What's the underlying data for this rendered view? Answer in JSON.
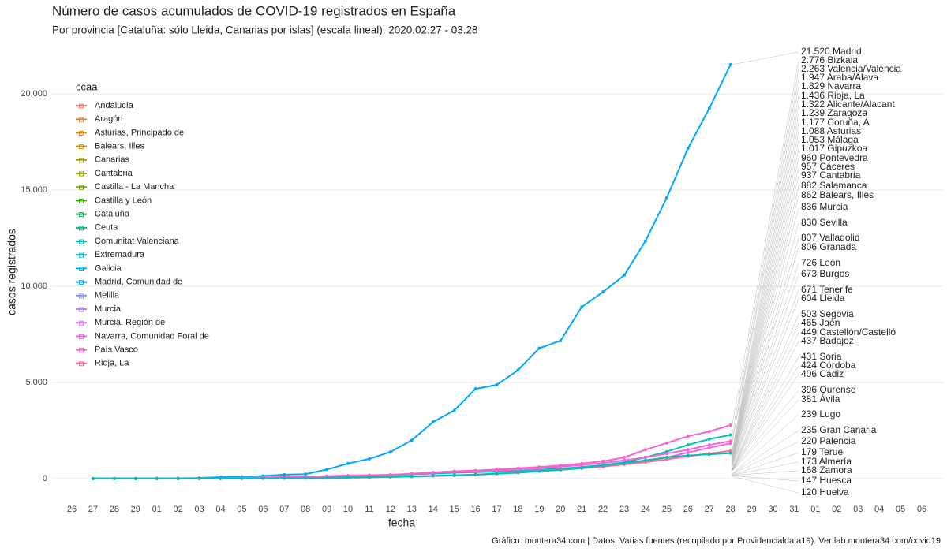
{
  "chart_data": {
    "type": "line",
    "title": "Número de casos acumulados de COVID-19 registrados en España",
    "subtitle": "Por provincia [Cataluña: sólo Lleida, Canarias por islas] (escala lineal). 2020.02.27 - 03.28",
    "xlabel": "fecha",
    "ylabel": "casos registrados",
    "caption": "Gráfico: montera34.com | Datos: Varias fuentes (recopilado por Providencialdata19). Ver lab.montera34.com/covid19",
    "categories": [
      "26",
      "27",
      "28",
      "29",
      "01",
      "02",
      "03",
      "04",
      "05",
      "06",
      "07",
      "08",
      "09",
      "10",
      "11",
      "12",
      "13",
      "14",
      "15",
      "16",
      "17",
      "18",
      "19",
      "20",
      "21",
      "22",
      "23",
      "24",
      "25",
      "26",
      "27",
      "28",
      "29",
      "30",
      "31",
      "01",
      "02",
      "03",
      "04",
      "05",
      "06"
    ],
    "ylim": [
      -1400,
      22500
    ],
    "yticks": [
      0,
      {
        "value": 5000,
        "label": "5.000"
      },
      {
        "value": 10000,
        "label": "10.000"
      },
      {
        "value": 15000,
        "label": "15.000"
      },
      {
        "value": 20000,
        "label": "20.000"
      }
    ],
    "grid": true,
    "series": [
      {
        "color": "#00A9FF",
        "values": [
          null,
          2,
          3,
          6,
          10,
          13,
          29,
          76,
          90,
          137,
          202,
          230,
          470,
          782,
          1024,
          1388,
          1990,
          2940,
          3544,
          4665,
          4871,
          5637,
          6777,
          7165,
          8921,
          9702,
          10575,
          12352,
          14597,
          17166,
          19243,
          21520,
          null,
          null,
          null,
          null,
          null,
          null,
          null,
          null,
          null
        ]
      },
      {
        "color": "#FC61D4",
        "values": [
          null,
          0,
          0,
          0,
          1,
          1,
          2,
          5,
          10,
          20,
          30,
          40,
          60,
          100,
          150,
          200,
          250,
          320,
          380,
          420,
          470,
          540,
          600,
          680,
          780,
          900,
          1100,
          1500,
          1850,
          2200,
          2450,
          2776,
          null,
          null,
          null,
          null,
          null,
          null,
          null,
          null,
          null
        ]
      },
      {
        "color": "#00C0BB",
        "values": [
          null,
          0,
          0,
          0,
          2,
          3,
          5,
          8,
          10,
          15,
          25,
          40,
          60,
          90,
          120,
          160,
          220,
          260,
          300,
          330,
          360,
          400,
          460,
          520,
          600,
          700,
          850,
          1100,
          1400,
          1750,
          2050,
          2263,
          null,
          null,
          null,
          null,
          null,
          null,
          null,
          null,
          null
        ]
      },
      {
        "color": "#FC61D4",
        "values": [
          null,
          0,
          0,
          1,
          3,
          5,
          10,
          20,
          30,
          60,
          80,
          100,
          130,
          160,
          180,
          200,
          250,
          300,
          350,
          380,
          420,
          480,
          550,
          620,
          700,
          800,
          950,
          1100,
          1300,
          1500,
          1750,
          1947,
          null,
          null,
          null,
          null,
          null,
          null,
          null,
          null,
          null
        ]
      },
      {
        "color": "#F066EA",
        "values": [
          null,
          0,
          0,
          0,
          1,
          2,
          3,
          5,
          8,
          10,
          15,
          20,
          30,
          40,
          60,
          80,
          100,
          130,
          160,
          200,
          260,
          320,
          400,
          480,
          560,
          640,
          760,
          900,
          1100,
          1350,
          1600,
          1829,
          null,
          null,
          null,
          null,
          null,
          null,
          null,
          null,
          null
        ]
      },
      {
        "color": "#FF6C91",
        "values": [
          null,
          0,
          0,
          0,
          0,
          0,
          0,
          1,
          2,
          5,
          10,
          20,
          30,
          50,
          70,
          90,
          110,
          140,
          170,
          210,
          260,
          320,
          380,
          450,
          530,
          620,
          730,
          850,
          1000,
          1150,
          1300,
          1436,
          null,
          null,
          null,
          null,
          null,
          null,
          null,
          null,
          null
        ]
      },
      {
        "color": "#00C0BB",
        "values": [
          null,
          0,
          0,
          0,
          1,
          2,
          3,
          5,
          8,
          12,
          18,
          25,
          35,
          50,
          70,
          90,
          110,
          140,
          170,
          200,
          250,
          300,
          380,
          460,
          560,
          680,
          800,
          950,
          1100,
          1200,
          1260,
          1322,
          null,
          null,
          null,
          null,
          null,
          null,
          null,
          null,
          null
        ]
      }
    ],
    "legend": {
      "title": "ccaa",
      "entries": [
        {
          "name": "Andalucía",
          "color": "#F8766D"
        },
        {
          "name": "Aragón",
          "color": "#EC8239"
        },
        {
          "name": "Asturias, Principado de",
          "color": "#DB8E00"
        },
        {
          "name": "Balears, Illes",
          "color": "#C79800"
        },
        {
          "name": "Canarias",
          "color": "#AFA100"
        },
        {
          "name": "Cantabria",
          "color": "#94AA00"
        },
        {
          "name": "Castilla - La Mancha",
          "color": "#72B000"
        },
        {
          "name": "Castilla y León",
          "color": "#3DB600"
        },
        {
          "name": "Cataluña",
          "color": "#00BA5C"
        },
        {
          "name": "Ceuta",
          "color": "#00BC81"
        },
        {
          "name": "Comunitat Valenciana",
          "color": "#00C0BB"
        },
        {
          "name": "Extremadura",
          "color": "#00BDD4"
        },
        {
          "name": "Galicia",
          "color": "#00B6EB"
        },
        {
          "name": "Madrid, Comunidad de",
          "color": "#00A9FF"
        },
        {
          "name": "Melilla",
          "color": "#8B93FF"
        },
        {
          "name": "Murcia",
          "color": "#BC81FF"
        },
        {
          "name": "Murcia, Región de",
          "color": "#DD71FA"
        },
        {
          "name": "Navarra, Comunidad Foral de",
          "color": "#F066EA"
        },
        {
          "name": "País Vasco",
          "color": "#FC61D4"
        },
        {
          "name": "Rioja, La",
          "color": "#FF6C91"
        }
      ]
    },
    "end_labels": [
      {
        "value": 21520,
        "label": "21.520 Madrid",
        "color": "#00A9FF"
      },
      {
        "value": 2776,
        "label": "2.776 Bizkaia",
        "color": "#FC61D4"
      },
      {
        "value": 2263,
        "label": "2.263 Valencia/València",
        "color": "#00C0BB"
      },
      {
        "value": 1947,
        "label": "1.947 Araba/Álava",
        "color": "#FC61D4"
      },
      {
        "value": 1829,
        "label": "1.829 Navarra",
        "color": "#F066EA"
      },
      {
        "value": 1436,
        "label": "1.436 Rioja, La",
        "color": "#FF6C91"
      },
      {
        "value": 1322,
        "label": "1.322 Alicante/Alacant",
        "color": "#00C0BB"
      },
      {
        "value": 1239,
        "label": "1.239 Zaragoza",
        "color": "#EC8239"
      },
      {
        "value": 1177,
        "label": "1.177 Coruña, A",
        "color": "#00B6EB"
      },
      {
        "value": 1088,
        "label": "1.088 Asturias",
        "color": "#DB8E00"
      },
      {
        "value": 1053,
        "label": "1.053 Málaga",
        "color": "#F8766D"
      },
      {
        "value": 1017,
        "label": "1.017 Gipuzkoa",
        "color": "#FC61D4"
      },
      {
        "value": 960,
        "label": "960 Pontevedra",
        "color": "#00B6EB"
      },
      {
        "value": 957,
        "label": "957 Cáceres",
        "color": "#00BDD4"
      },
      {
        "value": 937,
        "label": "937 Cantabria",
        "color": "#94AA00"
      },
      {
        "value": 882,
        "label": "882 Salamanca",
        "color": "#3DB600"
      },
      {
        "value": 862,
        "label": "862 Balears, Illes",
        "color": "#C79800"
      },
      {
        "value": 836,
        "label": "836 Murcia",
        "color": "#BC81FF"
      },
      {
        "value": 830,
        "label": "830 Sevilla",
        "color": "#F8766D"
      },
      {
        "value": 807,
        "label": "807 Valladolid",
        "color": "#3DB600"
      },
      {
        "value": 806,
        "label": "806 Granada",
        "color": "#F8766D"
      },
      {
        "value": 726,
        "label": "726 León",
        "color": "#3DB600"
      },
      {
        "value": 673,
        "label": "673 Burgos",
        "color": "#3DB600"
      },
      {
        "value": 671,
        "label": "671 Tenerife",
        "color": "#AFA100"
      },
      {
        "value": 604,
        "label": "604 Lleida",
        "color": "#00BA5C"
      },
      {
        "value": 503,
        "label": "503 Segovia",
        "color": "#3DB600"
      },
      {
        "value": 465,
        "label": "465 Jaén",
        "color": "#F8766D"
      },
      {
        "value": 449,
        "label": "449 Castellón/Castelló",
        "color": "#00C0BB"
      },
      {
        "value": 437,
        "label": "437 Badajoz",
        "color": "#00BDD4"
      },
      {
        "value": 431,
        "label": "431 Soria",
        "color": "#3DB600"
      },
      {
        "value": 424,
        "label": "424 Córdoba",
        "color": "#F8766D"
      },
      {
        "value": 406,
        "label": "406 Cádiz",
        "color": "#F8766D"
      },
      {
        "value": 396,
        "label": "396 Ourense",
        "color": "#00B6EB"
      },
      {
        "value": 381,
        "label": "381 Ávila",
        "color": "#3DB600"
      },
      {
        "value": 239,
        "label": "239 Lugo",
        "color": "#00B6EB"
      },
      {
        "value": 235,
        "label": "235 Gran Canaria",
        "color": "#AFA100"
      },
      {
        "value": 220,
        "label": "220 Palencia",
        "color": "#3DB600"
      },
      {
        "value": 179,
        "label": "179 Teruel",
        "color": "#EC8239"
      },
      {
        "value": 173,
        "label": "173 Almería",
        "color": "#F8766D"
      },
      {
        "value": 168,
        "label": "168 Zamora",
        "color": "#3DB600"
      },
      {
        "value": 147,
        "label": "147 Huesca",
        "color": "#EC8239"
      },
      {
        "value": 120,
        "label": "120 Huelva",
        "color": "#F8766D"
      }
    ]
  }
}
